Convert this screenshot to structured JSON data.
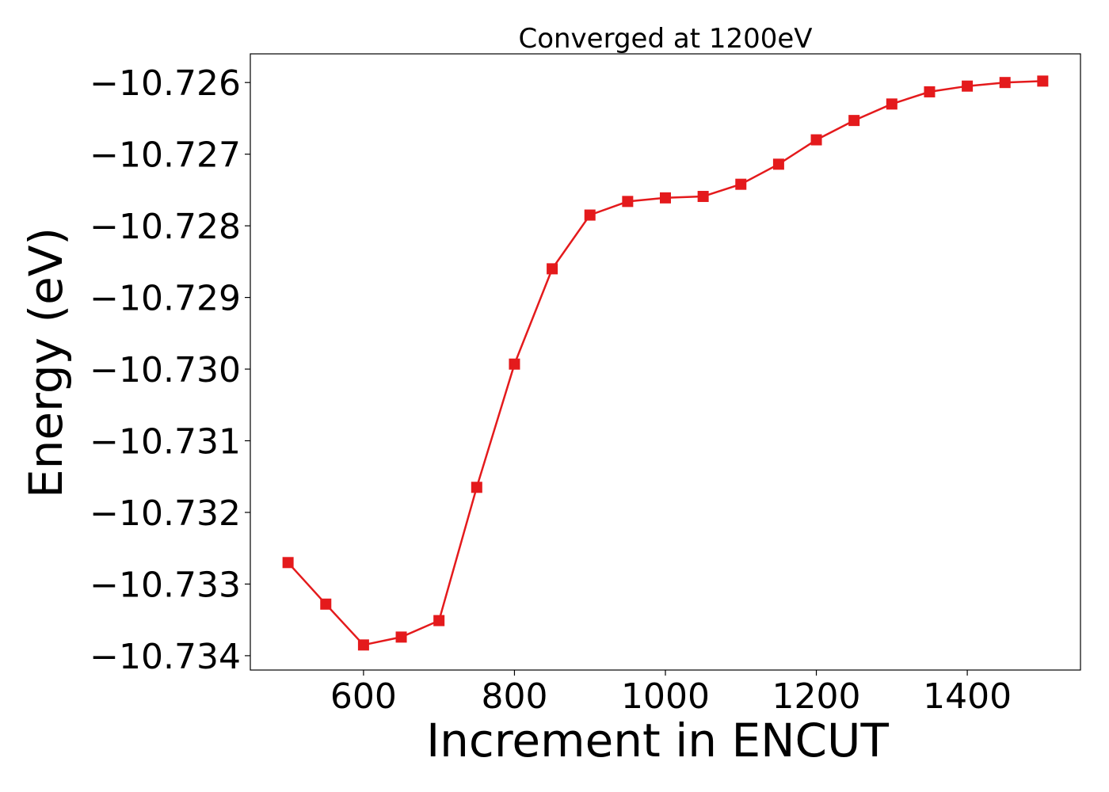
{
  "chart_data": {
    "type": "line",
    "title": "Converged at 1200eV",
    "xlabel": "Increment in ENCUT",
    "ylabel": "Energy (eV)",
    "xlim": [
      450,
      1550
    ],
    "ylim": [
      -10.7342,
      -10.7256
    ],
    "x_ticks": [
      600,
      800,
      1000,
      1200,
      1400
    ],
    "y_ticks": [
      -10.734,
      -10.733,
      -10.732,
      -10.731,
      -10.73,
      -10.729,
      -10.728,
      -10.727,
      -10.726
    ],
    "y_tick_labels": [
      "−10.734",
      "−10.733",
      "−10.732",
      "−10.731",
      "−10.730",
      "−10.729",
      "−10.728",
      "−10.727",
      "−10.726"
    ],
    "grid": false,
    "marker": "square",
    "color": "#e41a1c",
    "series": [
      {
        "x": [
          500,
          550,
          600,
          650,
          700,
          750,
          800,
          850,
          900,
          950,
          1000,
          1050,
          1100,
          1150,
          1200,
          1250,
          1300,
          1350,
          1400,
          1450,
          1500
        ],
        "y": [
          -10.7327,
          -10.73328,
          -10.73385,
          -10.73374,
          -10.73351,
          -10.73165,
          -10.72993,
          -10.7286,
          -10.72785,
          -10.72766,
          -10.72761,
          -10.72759,
          -10.72742,
          -10.72714,
          -10.7268,
          -10.72653,
          -10.7263,
          -10.72613,
          -10.72605,
          -10.726,
          -10.72598
        ]
      }
    ]
  }
}
